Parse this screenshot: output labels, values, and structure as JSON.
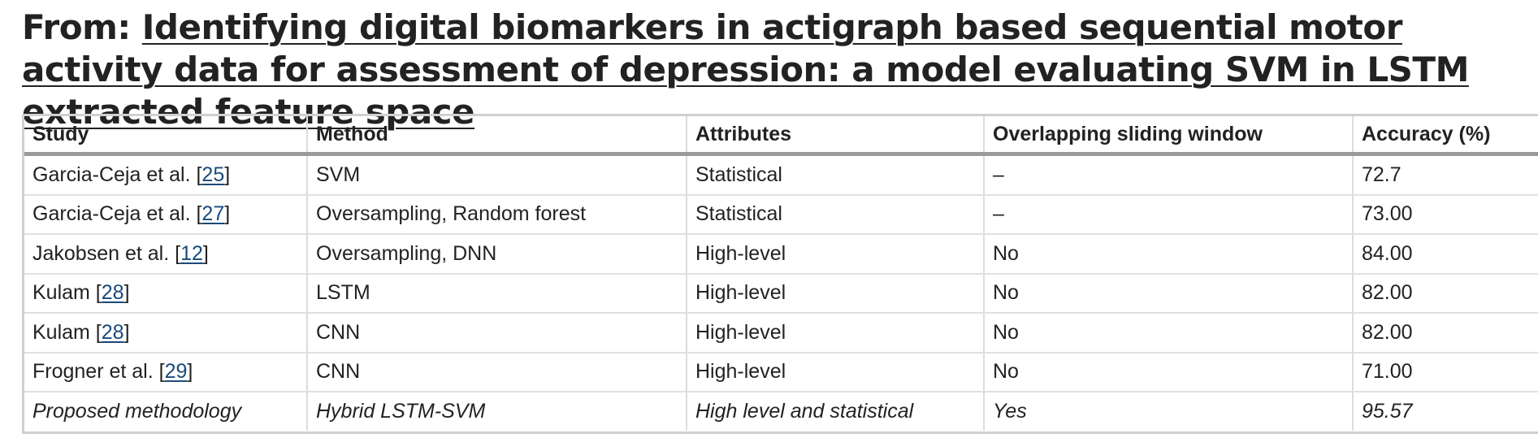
{
  "header": {
    "prefix": "From: ",
    "article_title": "Identifying digital biomarkers in actigraph based sequential motor activity data for assessment of depression: a model evaluating SVM in LSTM extracted feature space"
  },
  "table": {
    "columns": [
      "Study",
      "Method",
      "Attributes",
      "Overlapping sliding window",
      "Accuracy (%)"
    ],
    "rows": [
      {
        "study": "Garcia-Ceja et al. [",
        "ref": "25",
        "close": "]",
        "method": "SVM",
        "attributes": "Statistical",
        "overlap": "–",
        "accuracy": "72.7"
      },
      {
        "study": "Garcia-Ceja et al. [",
        "ref": "27",
        "close": "]",
        "method": "Oversampling, Random forest",
        "attributes": "Statistical",
        "overlap": "–",
        "accuracy": "73.00"
      },
      {
        "study": "Jakobsen et al. [",
        "ref": "12",
        "close": "]",
        "method": "Oversampling, DNN",
        "attributes": "High-level",
        "overlap": "No",
        "accuracy": "84.00"
      },
      {
        "study": "Kulam [",
        "ref": "28",
        "close": "]",
        "method": "LSTM",
        "attributes": "High-level",
        "overlap": "No",
        "accuracy": "82.00"
      },
      {
        "study": "Kulam [",
        "ref": "28",
        "close": "]",
        "method": "CNN",
        "attributes": "High-level",
        "overlap": "No",
        "accuracy": "82.00"
      },
      {
        "study": "Frogner et al. [",
        "ref": "29",
        "close": "]",
        "method": "CNN",
        "attributes": "High-level",
        "overlap": "No",
        "accuracy": "71.00"
      },
      {
        "study": "Proposed methodology",
        "ref": "",
        "close": "",
        "method": "Hybrid LSTM-SVM",
        "attributes": "High level and statistical",
        "overlap": "Yes",
        "accuracy": "95.57"
      }
    ]
  }
}
